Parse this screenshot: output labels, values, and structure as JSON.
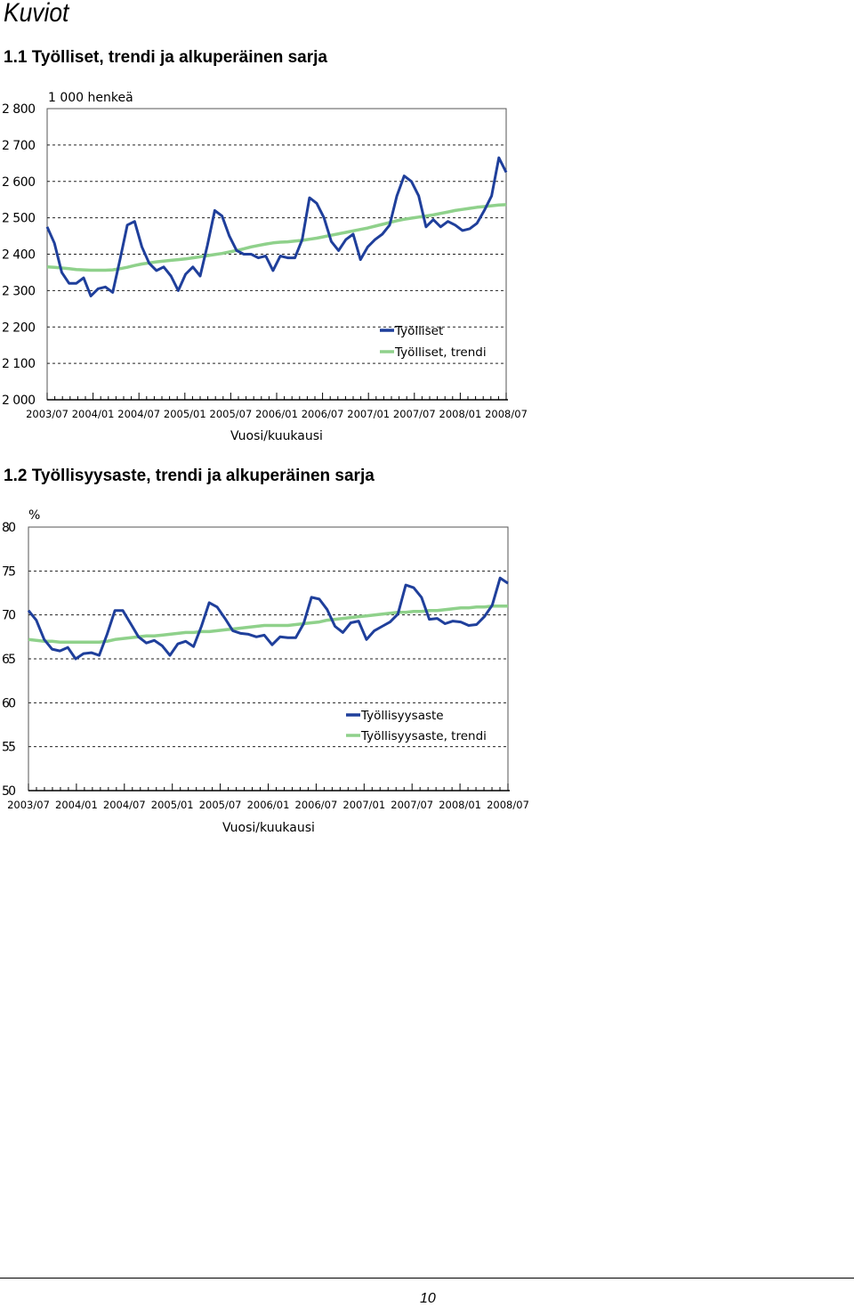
{
  "page": {
    "heading": "Kuviot",
    "page_number": "10"
  },
  "colors": {
    "original": "#1f3f9b",
    "trend": "#8fd18b",
    "grid": "#222222"
  },
  "chart_data": [
    {
      "type": "line",
      "title": "1.1 Työlliset, trendi ja alkuperäinen sarja",
      "unit_label": "1 000 henkeä",
      "xlabel": "Vuosi/kuukausi",
      "ylim": [
        2000,
        2800
      ],
      "y_ticks": [
        2000,
        2100,
        2200,
        2300,
        2400,
        2500,
        2600,
        2700,
        2800
      ],
      "y_tick_labels": [
        "2 000",
        "2 100",
        "2 200",
        "2 300",
        "2 400",
        "2 500",
        "2 600",
        "2 700",
        "2 800"
      ],
      "x_tick_labels": [
        "2003/07",
        "2004/01",
        "2004/07",
        "2005/01",
        "2005/07",
        "2006/01",
        "2006/07",
        "2007/01",
        "2007/07",
        "2008/01",
        "2008/07"
      ],
      "legend_position": "lower-right",
      "series": [
        {
          "name": "Työlliset",
          "key": "original",
          "values": [
            2475,
            2430,
            2350,
            2320,
            2320,
            2335,
            2285,
            2305,
            2310,
            2295,
            2385,
            2480,
            2490,
            2420,
            2375,
            2355,
            2365,
            2340,
            2300,
            2345,
            2365,
            2340,
            2425,
            2520,
            2505,
            2450,
            2410,
            2400,
            2400,
            2390,
            2395,
            2355,
            2395,
            2390,
            2390,
            2440,
            2555,
            2540,
            2500,
            2435,
            2410,
            2440,
            2455,
            2385,
            2420,
            2440,
            2455,
            2480,
            2560,
            2615,
            2600,
            2560,
            2475,
            2495,
            2475,
            2490,
            2480,
            2465,
            2470,
            2485,
            2520,
            2560,
            2665,
            2625
          ]
        },
        {
          "name": "Työlliset, trendi",
          "key": "trend",
          "values": [
            2365,
            2364,
            2362,
            2360,
            2358,
            2357,
            2356,
            2356,
            2356,
            2357,
            2360,
            2364,
            2369,
            2373,
            2376,
            2379,
            2381,
            2383,
            2385,
            2387,
            2390,
            2393,
            2396,
            2399,
            2402,
            2406,
            2410,
            2415,
            2420,
            2424,
            2428,
            2431,
            2433,
            2434,
            2436,
            2438,
            2441,
            2444,
            2448,
            2452,
            2456,
            2460,
            2464,
            2468,
            2472,
            2477,
            2482,
            2487,
            2492,
            2496,
            2499,
            2502,
            2505,
            2508,
            2512,
            2516,
            2520,
            2523,
            2526,
            2529,
            2531,
            2533,
            2535,
            2536
          ]
        }
      ]
    },
    {
      "type": "line",
      "title": "1.2 Työllisyysaste, trendi ja alkuperäinen sarja",
      "unit_label": "%",
      "xlabel": "Vuosi/kuukausi",
      "ylim": [
        50,
        80
      ],
      "y_ticks": [
        50,
        55,
        60,
        65,
        70,
        75,
        80
      ],
      "y_tick_labels": [
        "50",
        "55",
        "60",
        "65",
        "70",
        "75",
        "80"
      ],
      "x_tick_labels": [
        "2003/07",
        "2004/01",
        "2004/07",
        "2005/01",
        "2005/07",
        "2006/01",
        "2006/07",
        "2007/01",
        "2007/07",
        "2008/01",
        "2008/07"
      ],
      "legend_position": "lower-right",
      "series": [
        {
          "name": "Työllisyysaste",
          "key": "original",
          "values": [
            70.5,
            69.4,
            67.2,
            66.1,
            65.9,
            66.3,
            65.0,
            65.6,
            65.7,
            65.4,
            67.8,
            70.5,
            70.5,
            69.0,
            67.5,
            66.8,
            67.1,
            66.5,
            65.4,
            66.7,
            67.0,
            66.4,
            68.7,
            71.4,
            70.9,
            69.6,
            68.2,
            67.9,
            67.8,
            67.5,
            67.7,
            66.6,
            67.5,
            67.4,
            67.4,
            69.0,
            72.0,
            71.8,
            70.6,
            68.7,
            68.0,
            69.1,
            69.3,
            67.2,
            68.2,
            68.7,
            69.2,
            70.1,
            73.4,
            73.1,
            72.0,
            69.5,
            69.6,
            69.0,
            69.3,
            69.2,
            68.8,
            68.9,
            69.8,
            71.1,
            74.2,
            73.6
          ]
        },
        {
          "name": "Työllisyysaste, trendi",
          "key": "trend",
          "values": [
            67.2,
            67.1,
            67.0,
            67.0,
            66.9,
            66.9,
            66.9,
            66.9,
            66.9,
            66.9,
            67.0,
            67.2,
            67.3,
            67.4,
            67.5,
            67.6,
            67.6,
            67.7,
            67.8,
            67.9,
            68.0,
            68.0,
            68.1,
            68.1,
            68.2,
            68.3,
            68.4,
            68.5,
            68.6,
            68.7,
            68.8,
            68.8,
            68.8,
            68.8,
            68.9,
            69.0,
            69.1,
            69.2,
            69.4,
            69.5,
            69.6,
            69.7,
            69.8,
            69.9,
            70.0,
            70.1,
            70.2,
            70.3,
            70.3,
            70.4,
            70.4,
            70.5,
            70.5,
            70.6,
            70.7,
            70.8,
            70.8,
            70.9,
            70.9,
            71.0,
            71.0,
            71.0
          ]
        }
      ]
    }
  ]
}
